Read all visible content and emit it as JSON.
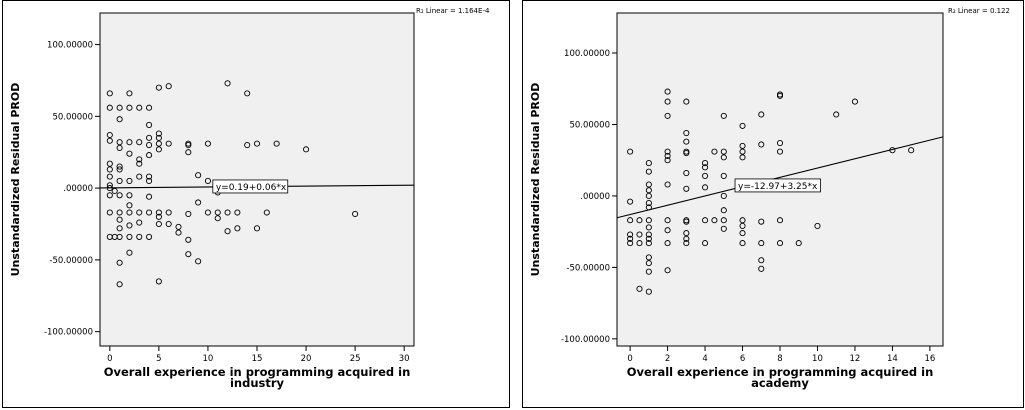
{
  "chart_data": [
    {
      "type": "scatter",
      "xlabel_lines": [
        "Overall experience in programming acquired in",
        "industry"
      ],
      "ylabel": "Unstandardized Residual PROD",
      "r2_text": "R₂ Linear = 1.164E-4",
      "fit_equation": "y=0.19+0.06*x",
      "fit": {
        "intercept": 0.19,
        "slope": 0.06
      },
      "xlim": [
        -1,
        31
      ],
      "ylim": [
        -110,
        122
      ],
      "xticks": [
        0,
        5,
        10,
        15,
        20,
        25,
        30
      ],
      "yticks": [
        -100,
        -50,
        0,
        50,
        100
      ],
      "ytick_labels": [
        "-100.00000",
        "-50.00000",
        ".00000",
        "50.00000",
        "100.00000"
      ],
      "points": [
        [
          0,
          66
        ],
        [
          0,
          56
        ],
        [
          0,
          37
        ],
        [
          0,
          33
        ],
        [
          0,
          17
        ],
        [
          0,
          13
        ],
        [
          0,
          8
        ],
        [
          0,
          2
        ],
        [
          0,
          0
        ],
        [
          0,
          -5
        ],
        [
          0,
          -17
        ],
        [
          0,
          -34
        ],
        [
          0.5,
          -2
        ],
        [
          0.5,
          -34
        ],
        [
          1,
          56
        ],
        [
          1,
          48
        ],
        [
          1,
          32
        ],
        [
          1,
          28
        ],
        [
          1,
          15
        ],
        [
          1,
          13
        ],
        [
          1,
          5
        ],
        [
          1,
          -5
        ],
        [
          1,
          -17
        ],
        [
          1,
          -22
        ],
        [
          1,
          -28
        ],
        [
          1,
          -34
        ],
        [
          1,
          -52
        ],
        [
          1,
          -67
        ],
        [
          2,
          66
        ],
        [
          2,
          56
        ],
        [
          2,
          32
        ],
        [
          2,
          24
        ],
        [
          2,
          5
        ],
        [
          2,
          -5
        ],
        [
          2,
          -12
        ],
        [
          2,
          -17
        ],
        [
          2,
          -26
        ],
        [
          2,
          -34
        ],
        [
          2,
          -45
        ],
        [
          3,
          56
        ],
        [
          3,
          32
        ],
        [
          3,
          20
        ],
        [
          3,
          17
        ],
        [
          3,
          8
        ],
        [
          3,
          -17
        ],
        [
          3,
          -24
        ],
        [
          3,
          -34
        ],
        [
          4,
          56
        ],
        [
          4,
          44
        ],
        [
          4,
          35
        ],
        [
          4,
          30
        ],
        [
          4,
          23
        ],
        [
          4,
          8
        ],
        [
          4,
          5
        ],
        [
          4,
          -6
        ],
        [
          4,
          -17
        ],
        [
          4,
          -34
        ],
        [
          5,
          70
        ],
        [
          5,
          38
        ],
        [
          5,
          35
        ],
        [
          5,
          31
        ],
        [
          5,
          27
        ],
        [
          5,
          -17
        ],
        [
          5,
          -20
        ],
        [
          5,
          -25
        ],
        [
          5,
          -65
        ],
        [
          6,
          71
        ],
        [
          6,
          31
        ],
        [
          6,
          -17
        ],
        [
          6,
          -25
        ],
        [
          7,
          -27
        ],
        [
          7,
          -31
        ],
        [
          8,
          31
        ],
        [
          8,
          30
        ],
        [
          8,
          25
        ],
        [
          8,
          -18
        ],
        [
          8,
          -36
        ],
        [
          8,
          -46
        ],
        [
          9,
          9
        ],
        [
          9,
          -10
        ],
        [
          9,
          -51
        ],
        [
          10,
          31
        ],
        [
          10,
          5
        ],
        [
          10,
          -17
        ],
        [
          11,
          -3
        ],
        [
          11,
          -17
        ],
        [
          11,
          -21
        ],
        [
          12,
          73
        ],
        [
          12,
          -17
        ],
        [
          12,
          -30
        ],
        [
          13,
          -17
        ],
        [
          13,
          -28
        ],
        [
          14,
          66
        ],
        [
          14,
          30
        ],
        [
          15,
          31
        ],
        [
          15,
          -28
        ],
        [
          16,
          -17
        ],
        [
          17,
          31
        ],
        [
          20,
          27
        ],
        [
          25,
          -18
        ]
      ]
    },
    {
      "type": "scatter",
      "xlabel_lines": [
        "Overall experience in programming acquired in",
        "academy"
      ],
      "ylabel": "Unstandardized Residual PROD",
      "r2_text": "R₂ Linear = 0.122",
      "fit_equation": "y=-12.97+3.25*x",
      "fit": {
        "intercept": -12.97,
        "slope": 3.25
      },
      "xlim": [
        -0.7,
        16.7
      ],
      "ylim": [
        -105,
        128
      ],
      "xticks": [
        0,
        2,
        4,
        6,
        8,
        10,
        12,
        14,
        16
      ],
      "yticks": [
        -100,
        -50,
        0,
        50,
        100
      ],
      "ytick_labels": [
        "-100.00000",
        "-50.00000",
        ".00000",
        "50.00000",
        "100.00000"
      ],
      "points": [
        [
          0,
          31
        ],
        [
          0,
          -4
        ],
        [
          0,
          -17
        ],
        [
          0,
          -27
        ],
        [
          0,
          -30
        ],
        [
          0,
          -33
        ],
        [
          0.5,
          -17
        ],
        [
          0.5,
          -27
        ],
        [
          0.5,
          -33
        ],
        [
          0.5,
          -65
        ],
        [
          1,
          23
        ],
        [
          1,
          17
        ],
        [
          1,
          8
        ],
        [
          1,
          4
        ],
        [
          1,
          0
        ],
        [
          1,
          -5
        ],
        [
          1,
          -8
        ],
        [
          1,
          -17
        ],
        [
          1,
          -22
        ],
        [
          1,
          -27
        ],
        [
          1,
          -30
        ],
        [
          1,
          -33
        ],
        [
          1,
          -43
        ],
        [
          1,
          -47
        ],
        [
          1,
          -53
        ],
        [
          1,
          -67
        ],
        [
          2,
          73
        ],
        [
          2,
          66
        ],
        [
          2,
          56
        ],
        [
          2,
          31
        ],
        [
          2,
          28
        ],
        [
          2,
          25
        ],
        [
          2,
          8
        ],
        [
          2,
          -17
        ],
        [
          2,
          -24
        ],
        [
          2,
          -33
        ],
        [
          2,
          -52
        ],
        [
          3,
          66
        ],
        [
          3,
          44
        ],
        [
          3,
          38
        ],
        [
          3,
          31
        ],
        [
          3,
          30
        ],
        [
          3,
          16
        ],
        [
          3,
          5
        ],
        [
          3,
          -17
        ],
        [
          3,
          -18
        ],
        [
          3,
          -26
        ],
        [
          3,
          -30
        ],
        [
          3,
          -33
        ],
        [
          4,
          23
        ],
        [
          4,
          20
        ],
        [
          4,
          14
        ],
        [
          4,
          6
        ],
        [
          4,
          -17
        ],
        [
          4,
          -33
        ],
        [
          4.5,
          31
        ],
        [
          4.5,
          -17
        ],
        [
          5,
          56
        ],
        [
          5,
          31
        ],
        [
          5,
          27
        ],
        [
          5,
          14
        ],
        [
          5,
          0
        ],
        [
          5,
          -10
        ],
        [
          5,
          -17
        ],
        [
          5,
          -23
        ],
        [
          6,
          49
        ],
        [
          6,
          35
        ],
        [
          6,
          31
        ],
        [
          6,
          27
        ],
        [
          6,
          -17
        ],
        [
          6,
          -21
        ],
        [
          6,
          -26
        ],
        [
          6,
          -33
        ],
        [
          7,
          57
        ],
        [
          7,
          36
        ],
        [
          7,
          5
        ],
        [
          7,
          -18
        ],
        [
          7,
          -33
        ],
        [
          7,
          -45
        ],
        [
          7,
          -51
        ],
        [
          8,
          71
        ],
        [
          8,
          70
        ],
        [
          8,
          37
        ],
        [
          8,
          31
        ],
        [
          8,
          -17
        ],
        [
          8,
          -33
        ],
        [
          9,
          -33
        ],
        [
          10,
          -21
        ],
        [
          11,
          57
        ],
        [
          12,
          66
        ],
        [
          14,
          32
        ],
        [
          15,
          32
        ]
      ]
    }
  ]
}
